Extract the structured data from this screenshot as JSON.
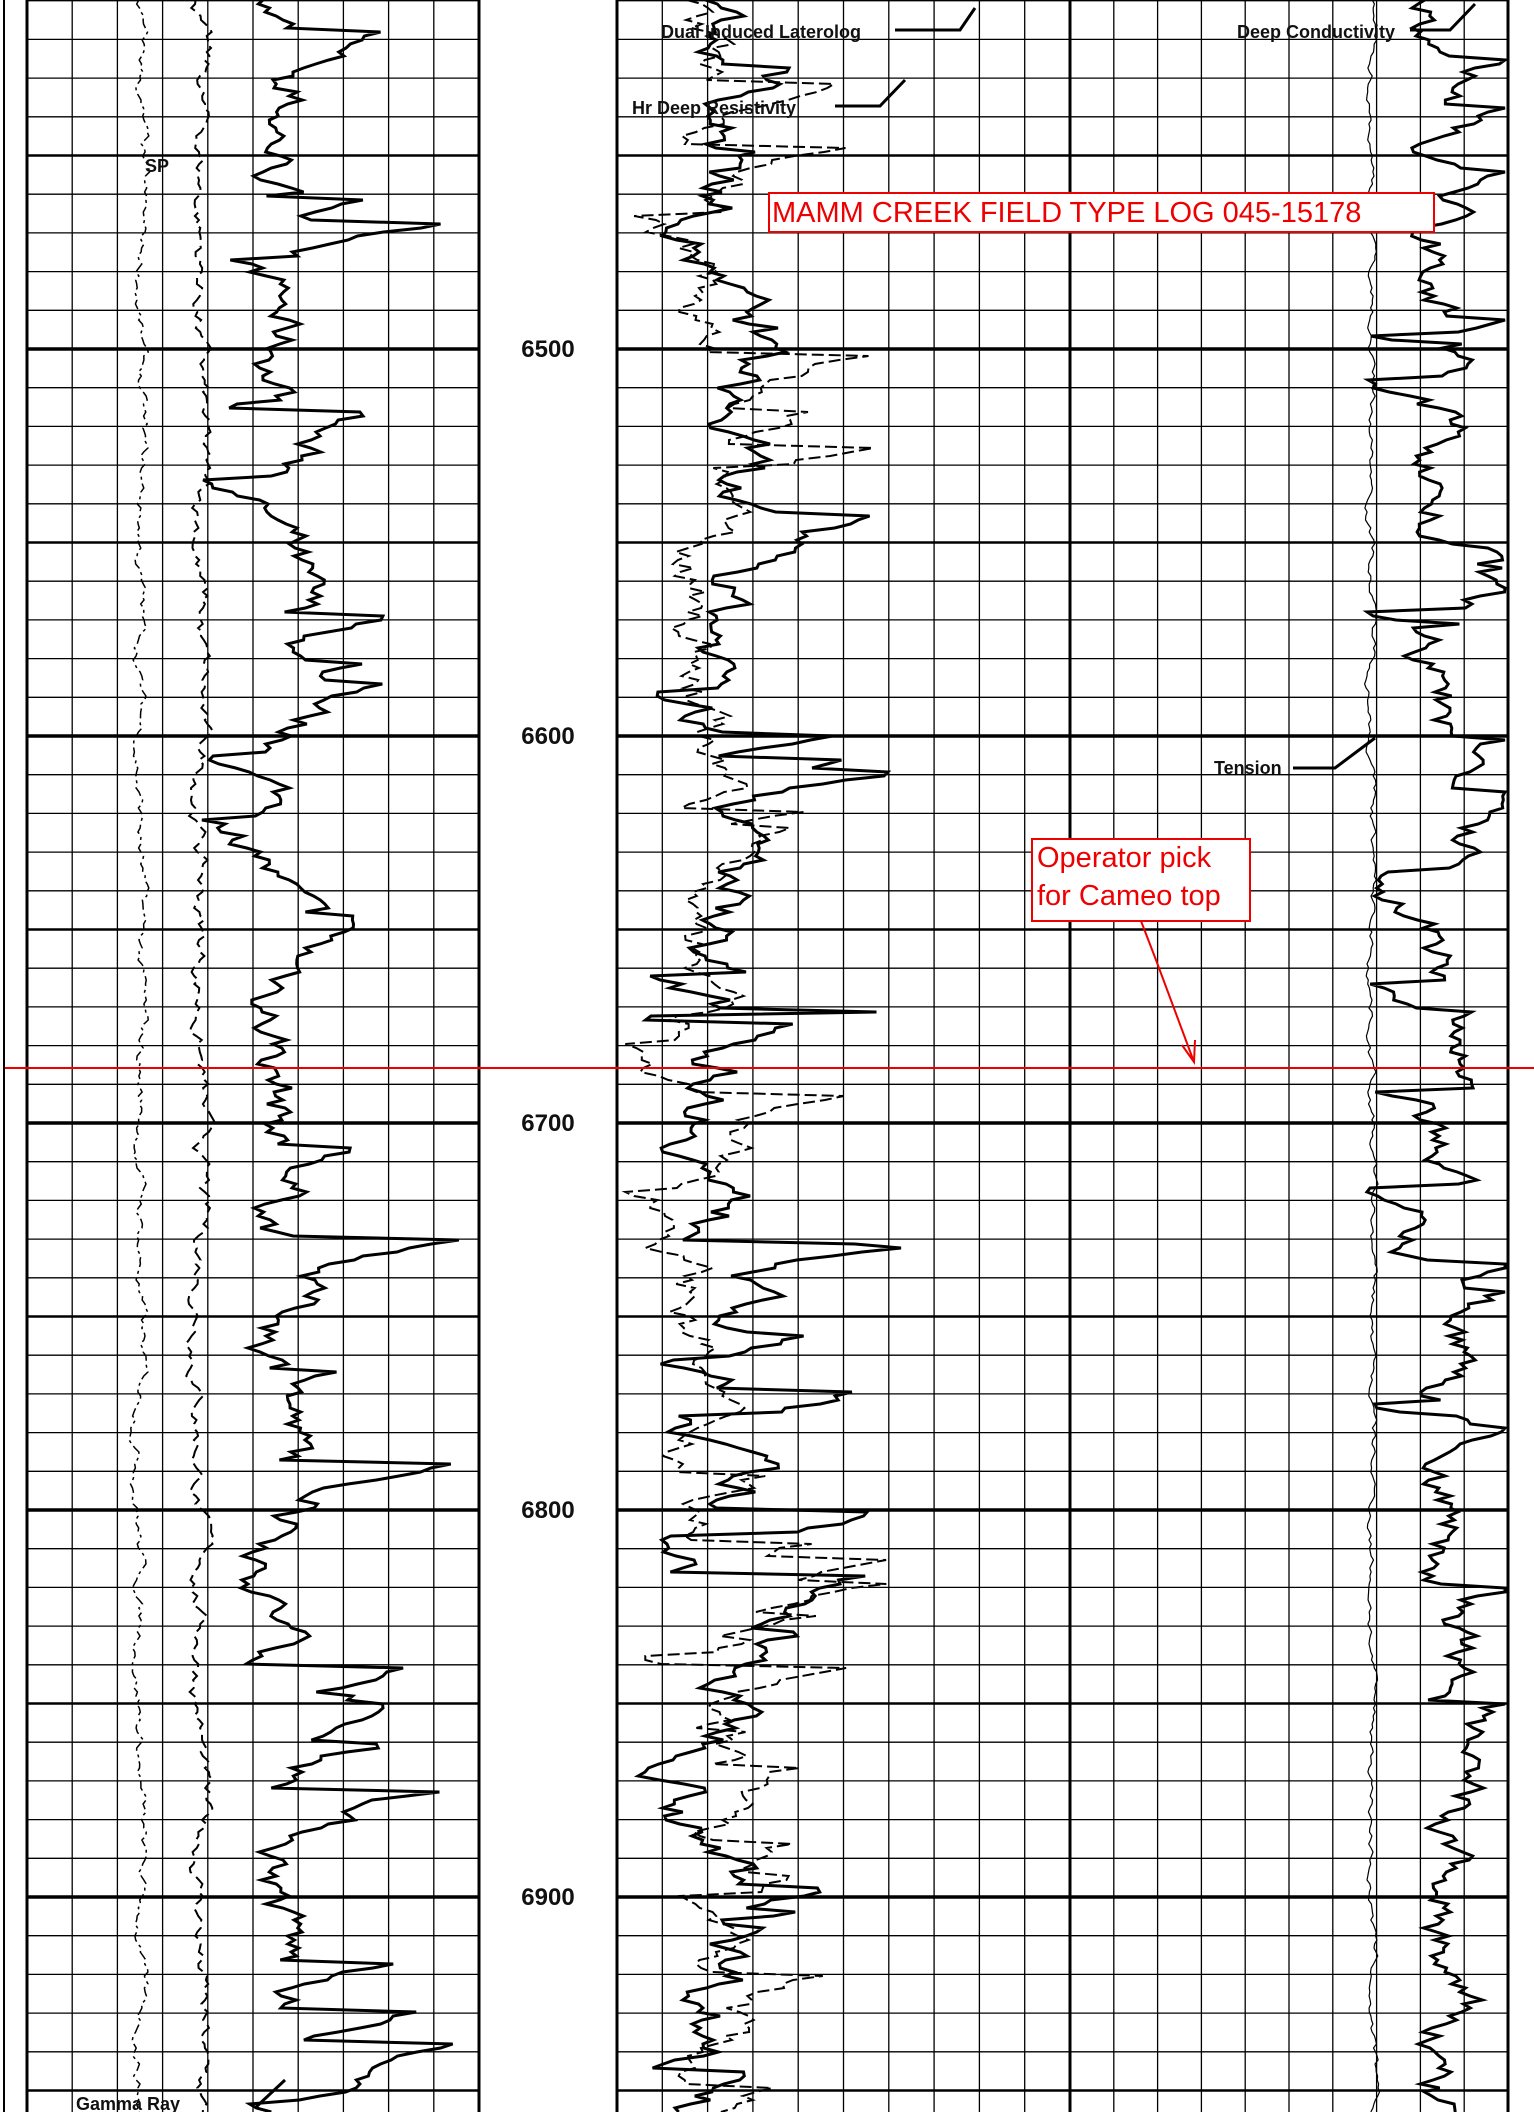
{
  "header": {
    "title": "MAMM CREEK FIELD TYPE LOG 045-15178"
  },
  "depth_labels": [
    "6500",
    "6600",
    "6700",
    "6800",
    "6900"
  ],
  "curve_labels": {
    "laterolog": "Dual Induced Laterolog",
    "resistivity": "Hr Deep Resistivity",
    "conductivity": "Deep Conductivity",
    "sp": "SP",
    "tension": "Tension",
    "gamma": "Gamma Ray"
  },
  "annotation": {
    "line1": "Operator pick",
    "line2": "for Cameo top"
  }
}
